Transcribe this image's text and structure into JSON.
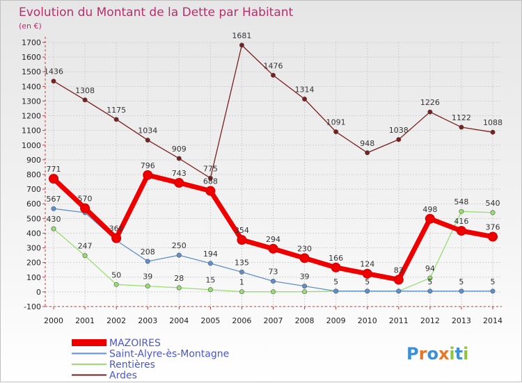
{
  "chart_data": {
    "type": "line",
    "title": "Evolution du Montant de la Dette par Habitant",
    "subtitle": "(en €)",
    "xlabel": "",
    "ylabel": "",
    "categories": [
      "2000",
      "2001",
      "2002",
      "2003",
      "2004",
      "2005",
      "2006",
      "2007",
      "2008",
      "2009",
      "2010",
      "2011",
      "2012",
      "2013",
      "2014"
    ],
    "ylim": [
      -100,
      1700
    ],
    "yticks": [
      -100,
      0,
      100,
      200,
      300,
      400,
      500,
      600,
      700,
      800,
      900,
      1000,
      1100,
      1200,
      1300,
      1400,
      1500,
      1600,
      1700
    ],
    "grid": true,
    "legend_position": "bottom-left",
    "series": [
      {
        "name": "Ardes",
        "color": "#7a1e1e",
        "values": [
          1436,
          1308,
          1175,
          1034,
          909,
          775,
          1681,
          1476,
          1314,
          1091,
          948,
          1038,
          1226,
          1122,
          1088
        ],
        "labels": [
          "1436",
          "1308",
          "1175",
          "1034",
          "909",
          "775",
          "1681",
          "1476",
          "1314",
          "1091",
          "948",
          "1038",
          "1226",
          "1122",
          "1088"
        ]
      },
      {
        "name": "Rentières",
        "color": "#98dd72",
        "values": [
          430,
          247,
          50,
          39,
          28,
          15,
          1,
          1,
          1,
          5,
          5,
          5,
          94,
          548,
          540
        ],
        "labels": [
          "430",
          "247",
          "50",
          "39",
          "28",
          "15",
          "1",
          "",
          "",
          "",
          "",
          "",
          "94",
          "548",
          "540"
        ]
      },
      {
        "name": "Saint-Alyre-ès-Montagne",
        "color": "#5f8fcc",
        "values": [
          567,
          540,
          350,
          208,
          250,
          194,
          135,
          73,
          39,
          5,
          5,
          5,
          5,
          5,
          5
        ],
        "labels": [
          "567",
          "",
          "",
          "208",
          "250",
          "194",
          "135",
          "73",
          "39",
          "5",
          "5",
          "",
          "5",
          "5",
          "5"
        ]
      },
      {
        "name": "MAZOIRES",
        "color": "#ee0000",
        "values": [
          771,
          570,
          366,
          796,
          743,
          688,
          354,
          294,
          230,
          166,
          124,
          83,
          498,
          416,
          376
        ],
        "labels": [
          "771",
          "570",
          "366",
          "796",
          "743",
          "688",
          "354",
          "294",
          "230",
          "166",
          "124",
          "83",
          "498",
          "416",
          "376"
        ]
      }
    ],
    "legend_order": [
      "MAZOIRES",
      "Saint-Alyre-ès-Montagne",
      "Rentières",
      "Ardes"
    ]
  },
  "logo": {
    "letters": [
      "P",
      "r",
      "o",
      "x",
      "i",
      "t",
      "i"
    ],
    "colors": [
      "#3d8fd6",
      "#e8762a",
      "#3d8fd6",
      "#e8762a",
      "#8cc63f",
      "#3d8fd6",
      "#8cc63f"
    ]
  }
}
